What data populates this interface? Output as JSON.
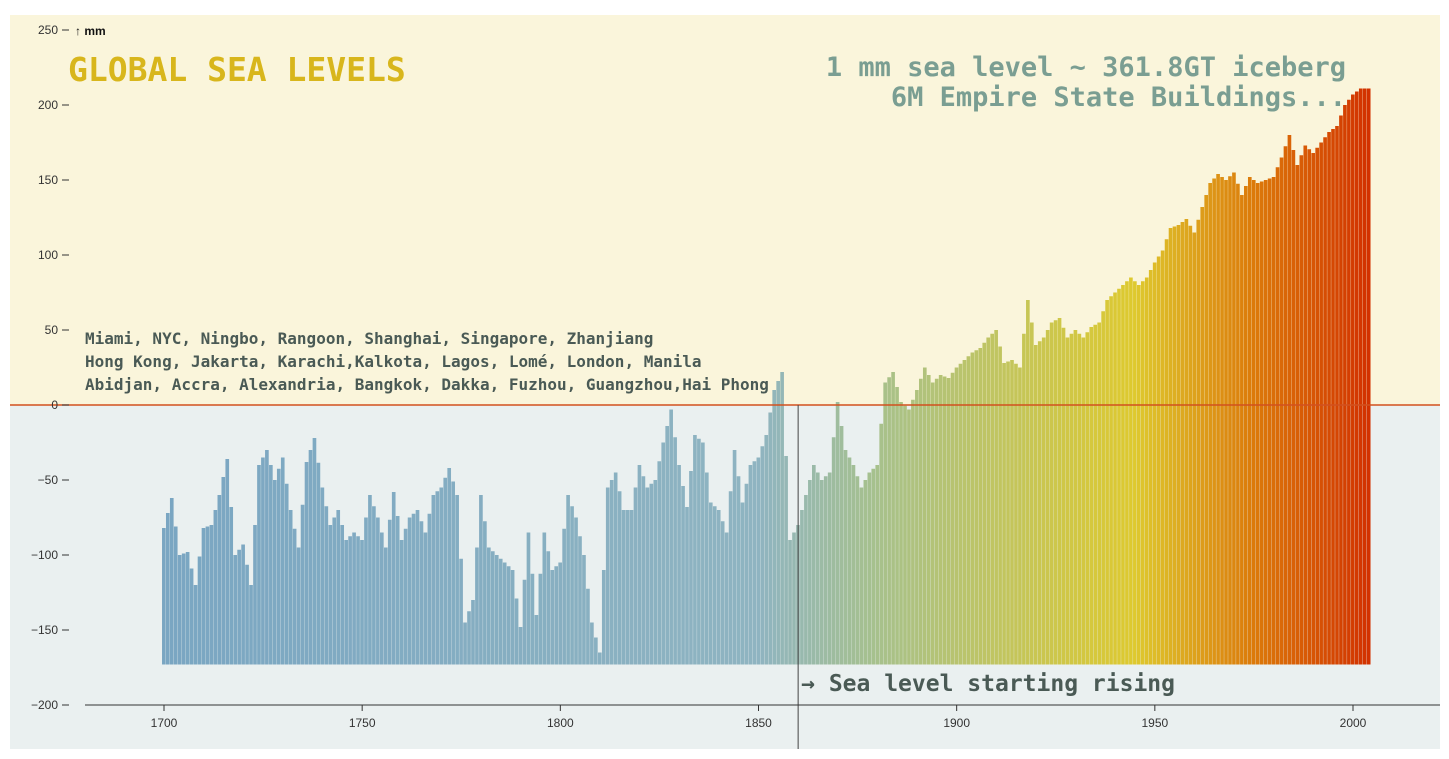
{
  "chart_data": {
    "type": "bar",
    "title": "GLOBAL SEA LEVELS",
    "ylabel": "↑ mm",
    "xlabel": "",
    "x_range": [
      1700,
      2004
    ],
    "xlim": [
      1680,
      2022
    ],
    "ylim": [
      -200,
      250
    ],
    "baseline": -173,
    "x_ticks": [
      1700,
      1750,
      1800,
      1850,
      1900,
      1950,
      2000
    ],
    "y_ticks": [
      -200,
      -150,
      -100,
      -50,
      0,
      50,
      100,
      150,
      200,
      250
    ],
    "x_ticks_labels": [
      "1700",
      "1750",
      "1800",
      "1850",
      "1900",
      "1950",
      "2000"
    ],
    "y_ticks_labels": [
      "−200",
      "−150",
      "−100",
      "−50",
      "0",
      "50",
      "100",
      "150",
      "200",
      "250"
    ],
    "keypoints": [
      [
        1700,
        -82
      ],
      [
        1702,
        -62
      ],
      [
        1704,
        -100
      ],
      [
        1706,
        -98
      ],
      [
        1708,
        -120
      ],
      [
        1710,
        -82
      ],
      [
        1712,
        -80
      ],
      [
        1714,
        -60
      ],
      [
        1716,
        -36
      ],
      [
        1718,
        -100
      ],
      [
        1720,
        -93
      ],
      [
        1722,
        -120
      ],
      [
        1724,
        -40
      ],
      [
        1726,
        -30
      ],
      [
        1728,
        -50
      ],
      [
        1730,
        -35
      ],
      [
        1732,
        -70
      ],
      [
        1734,
        -95
      ],
      [
        1736,
        -38
      ],
      [
        1738,
        -22
      ],
      [
        1740,
        -55
      ],
      [
        1742,
        -80
      ],
      [
        1744,
        -70
      ],
      [
        1746,
        -90
      ],
      [
        1748,
        -85
      ],
      [
        1750,
        -90
      ],
      [
        1752,
        -60
      ],
      [
        1754,
        -75
      ],
      [
        1756,
        -95
      ],
      [
        1758,
        -58
      ],
      [
        1760,
        -90
      ],
      [
        1762,
        -75
      ],
      [
        1764,
        -70
      ],
      [
        1766,
        -85
      ],
      [
        1768,
        -60
      ],
      [
        1770,
        -55
      ],
      [
        1772,
        -42
      ],
      [
        1774,
        -60
      ],
      [
        1776,
        -145
      ],
      [
        1778,
        -130
      ],
      [
        1780,
        -60
      ],
      [
        1782,
        -95
      ],
      [
        1784,
        -100
      ],
      [
        1786,
        -105
      ],
      [
        1788,
        -110
      ],
      [
        1790,
        -148
      ],
      [
        1792,
        -85
      ],
      [
        1794,
        -140
      ],
      [
        1796,
        -85
      ],
      [
        1798,
        -110
      ],
      [
        1800,
        -105
      ],
      [
        1802,
        -60
      ],
      [
        1804,
        -75
      ],
      [
        1806,
        -100
      ],
      [
        1808,
        -145
      ],
      [
        1810,
        -165
      ],
      [
        1812,
        -55
      ],
      [
        1814,
        -45
      ],
      [
        1816,
        -70
      ],
      [
        1818,
        -70
      ],
      [
        1820,
        -40
      ],
      [
        1822,
        -55
      ],
      [
        1824,
        -50
      ],
      [
        1826,
        -25
      ],
      [
        1828,
        -3
      ],
      [
        1830,
        -40
      ],
      [
        1832,
        -68
      ],
      [
        1834,
        -20
      ],
      [
        1836,
        -25
      ],
      [
        1838,
        -65
      ],
      [
        1840,
        -70
      ],
      [
        1842,
        -85
      ],
      [
        1844,
        -30
      ],
      [
        1846,
        -65
      ],
      [
        1848,
        -40
      ],
      [
        1850,
        -35
      ],
      [
        1852,
        -20
      ],
      [
        1854,
        10
      ],
      [
        1856,
        22
      ],
      [
        1858,
        -90
      ],
      [
        1860,
        -80
      ],
      [
        1862,
        -60
      ],
      [
        1864,
        -40
      ],
      [
        1866,
        -50
      ],
      [
        1868,
        -45
      ],
      [
        1870,
        2
      ],
      [
        1872,
        -30
      ],
      [
        1874,
        -40
      ],
      [
        1876,
        -55
      ],
      [
        1878,
        -45
      ],
      [
        1880,
        -40
      ],
      [
        1882,
        15
      ],
      [
        1884,
        22
      ],
      [
        1886,
        2
      ],
      [
        1888,
        -3
      ],
      [
        1890,
        10
      ],
      [
        1892,
        25
      ],
      [
        1894,
        15
      ],
      [
        1896,
        20
      ],
      [
        1898,
        18
      ],
      [
        1900,
        25
      ],
      [
        1902,
        30
      ],
      [
        1904,
        35
      ],
      [
        1906,
        38
      ],
      [
        1908,
        45
      ],
      [
        1910,
        50
      ],
      [
        1912,
        28
      ],
      [
        1914,
        30
      ],
      [
        1916,
        25
      ],
      [
        1918,
        70
      ],
      [
        1920,
        40
      ],
      [
        1922,
        45
      ],
      [
        1924,
        55
      ],
      [
        1926,
        58
      ],
      [
        1928,
        45
      ],
      [
        1930,
        50
      ],
      [
        1932,
        45
      ],
      [
        1934,
        52
      ],
      [
        1936,
        55
      ],
      [
        1938,
        70
      ],
      [
        1940,
        75
      ],
      [
        1942,
        80
      ],
      [
        1944,
        85
      ],
      [
        1946,
        80
      ],
      [
        1948,
        85
      ],
      [
        1950,
        95
      ],
      [
        1952,
        103
      ],
      [
        1954,
        118
      ],
      [
        1956,
        120
      ],
      [
        1958,
        124
      ],
      [
        1960,
        115
      ],
      [
        1962,
        132
      ],
      [
        1964,
        148
      ],
      [
        1966,
        154
      ],
      [
        1968,
        150
      ],
      [
        1970,
        155
      ],
      [
        1972,
        140
      ],
      [
        1974,
        152
      ],
      [
        1976,
        148
      ],
      [
        1978,
        150
      ],
      [
        1980,
        152
      ],
      [
        1982,
        165
      ],
      [
        1984,
        180
      ],
      [
        1986,
        160
      ],
      [
        1988,
        173
      ],
      [
        1990,
        168
      ],
      [
        1992,
        175
      ],
      [
        1994,
        182
      ],
      [
        1996,
        186
      ],
      [
        1998,
        200
      ],
      [
        2000,
        207
      ],
      [
        2002,
        211
      ],
      [
        2004,
        211
      ]
    ],
    "colors": {
      "background_above": "#faf5db",
      "background_below": "#eaf0f0",
      "zero_line": "#d2501e",
      "axis": "#444444",
      "bar_stops": [
        [
          1700,
          "#7aa6c2"
        ],
        [
          1850,
          "#8fb4c1"
        ],
        [
          1880,
          "#a7c18c"
        ],
        [
          1945,
          "#dec92e"
        ],
        [
          1975,
          "#dc7a0a"
        ],
        [
          2004,
          "#d23200"
        ]
      ]
    },
    "annotations": {
      "fact_line_1": "1 mm sea level ~ 361.8GT iceberg",
      "fact_line_2": "6M Empire State Buildings...",
      "cities": [
        "Miami, NYC, Ningbo, Rangoon, Shanghai, Singapore, Zhanjiang",
        "Hong Kong, Jakarta, Karachi,Kalkota, Lagos, Lomé, London, Manila",
        "Abidjan, Accra, Alexandria, Bangkok, Dakka, Fuzhou, Guangzhou,Hai Phong"
      ],
      "marker_year": 1860,
      "marker_text": "→ Sea level starting rising"
    }
  }
}
